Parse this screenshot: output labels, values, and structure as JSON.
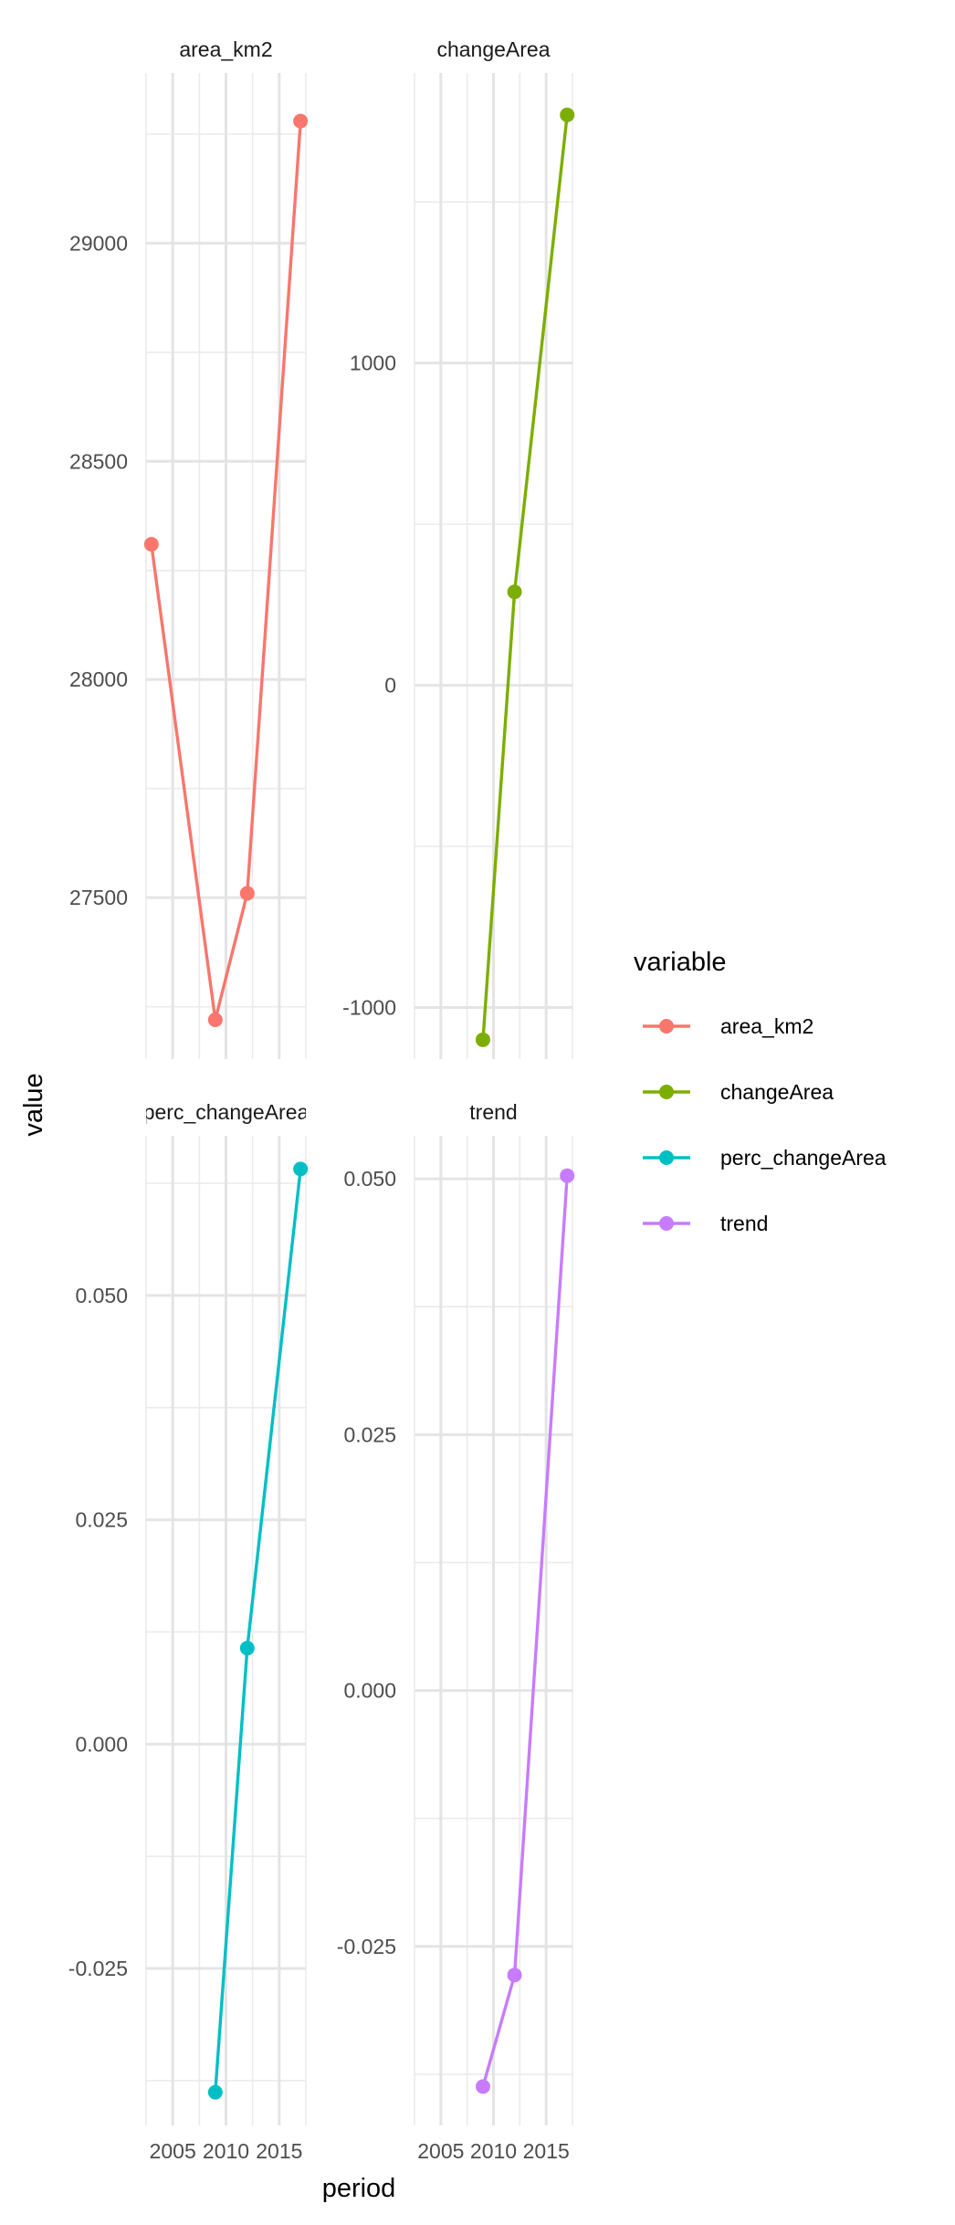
{
  "chart_data": {
    "type": "line",
    "xlabel": "period",
    "ylabel": "value",
    "legend": {
      "title": "variable",
      "position": "right"
    },
    "x_ticks": [
      "2005",
      "2010",
      "2015"
    ],
    "panels": [
      {
        "name": "area_km2",
        "strip_label": "area_km2",
        "color": "#F8766D",
        "x": [
          2003,
          2009,
          2012,
          2017
        ],
        "y": [
          28310,
          27220,
          27510,
          29280
        ],
        "ylim": [
          27130,
          29390
        ],
        "y_ticks": [
          "27500",
          "28000",
          "28500",
          "29000"
        ]
      },
      {
        "name": "changeArea",
        "strip_label": "changeArea",
        "color": "#7CAE00",
        "x": [
          2009,
          2012,
          2017
        ],
        "y": [
          -1100,
          290,
          1770
        ],
        "ylim": [
          -1160,
          1900
        ],
        "y_ticks": [
          "-1000",
          "0",
          "1000"
        ]
      },
      {
        "name": "perc_changeArea",
        "strip_label": "perc_changeArea",
        "color": "#00BFC4",
        "x": [
          2009,
          2012,
          2017
        ],
        "y": [
          -0.0388,
          0.0107,
          0.0641
        ],
        "ylim": [
          -0.0425,
          0.0678
        ],
        "y_ticks": [
          "-0.025",
          "0.000",
          "0.025",
          "0.050"
        ]
      },
      {
        "name": "trend",
        "strip_label": "trend",
        "color": "#C77CFF",
        "x": [
          2009,
          2012,
          2017
        ],
        "y": [
          -0.0387,
          -0.0278,
          0.0503
        ],
        "ylim": [
          -0.0425,
          0.0542
        ],
        "y_ticks": [
          "-0.025",
          "0.000",
          "0.025",
          "0.050"
        ]
      }
    ]
  }
}
